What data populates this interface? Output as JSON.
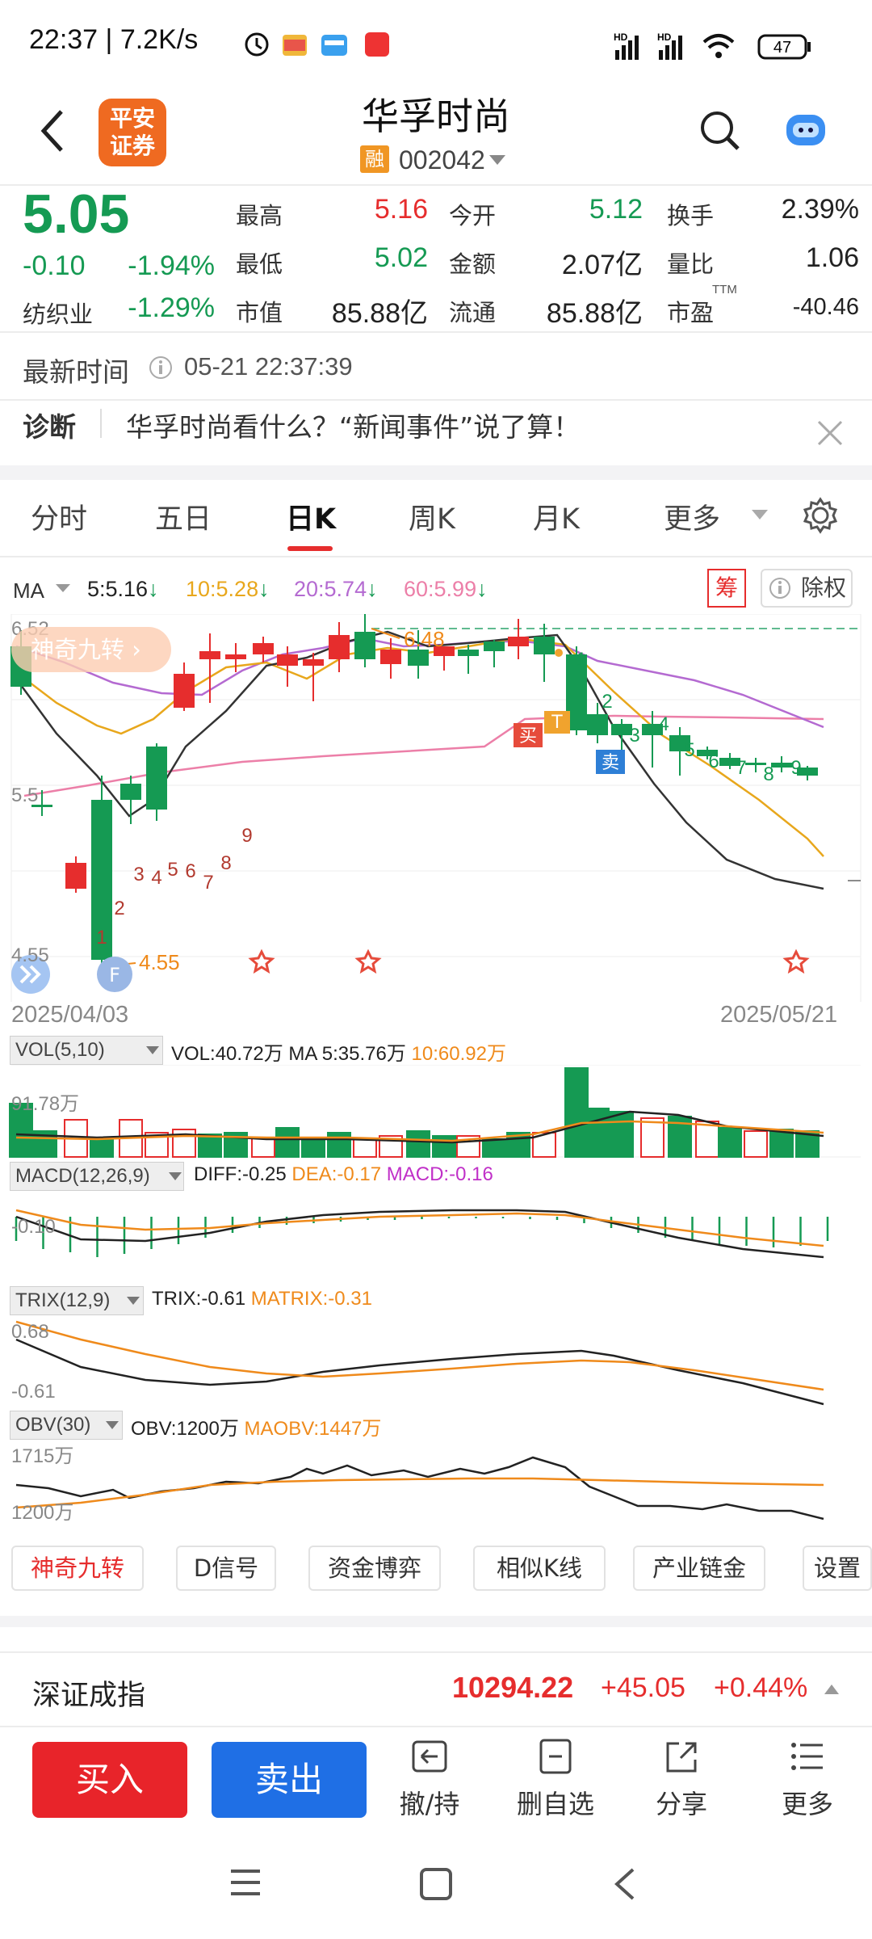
{
  "status": {
    "time": "22:37",
    "speed": "7.2K/s",
    "battery": "47",
    "net1": "HD",
    "net2": "HD"
  },
  "header": {
    "logo_line1": "平安",
    "logo_line2": "证券",
    "title": "华孚时尚",
    "rong": "融",
    "code": "002042"
  },
  "quote": {
    "price": "5.05",
    "change": "-0.10",
    "change_pct": "-1.94%",
    "industry": "纺织业",
    "industry_pct": "-1.29%",
    "high_l": "最高",
    "high": "5.16",
    "open_l": "今开",
    "open": "5.12",
    "turn_l": "换手",
    "turn": "2.39%",
    "low_l": "最低",
    "low": "5.02",
    "amt_l": "金额",
    "amt": "2.07亿",
    "vr_l": "量比",
    "vr": "1.06",
    "mcap_l": "市值",
    "mcap": "85.88亿",
    "float_l": "流通",
    "float": "85.88亿",
    "pe_l": "市盈",
    "pe_sup": "TTM",
    "pe": "-40.46"
  },
  "update": {
    "label": "最新时间",
    "time": "05-21 22:37:39"
  },
  "diag": {
    "label": "诊断",
    "text": "华孚时尚看什么？“新闻事件”说了算！"
  },
  "tabs": [
    "分时",
    "五日",
    "日K",
    "周K",
    "月K",
    "更多"
  ],
  "ma": {
    "label": "MA",
    "ma5": "5:5.16",
    "ma10": "10:5.28",
    "ma20": "20:5.74",
    "ma60": "60:5.99",
    "chou": "筹",
    "chuquan": "除权"
  },
  "kline": {
    "jiuzhuan": "神奇九转",
    "y_high": "6.52",
    "y_mid": "5.5",
    "y_low": "4.55",
    "hi_mark": "6.48",
    "lo_mark": "4.55",
    "date_start": "2025/04/03",
    "date_end": "2025/05/21",
    "buy": "买",
    "sell": "卖",
    "t": "T"
  },
  "vol": {
    "sel": "VOL(5,10)",
    "vol": "VOL:40.72万",
    "ma5": "MA 5:35.76万",
    "ma10": "10:60.92万",
    "y": "91.78万"
  },
  "macd": {
    "sel": "MACD(12,26,9)",
    "diff": "DIFF:-0.25",
    "dea": "DEA:-0.17",
    "macd": "MACD:-0.16",
    "y": "-0.10"
  },
  "trix": {
    "sel": "TRIX(12,9)",
    "trix": "TRIX:-0.61",
    "matrix": "MATRIX:-0.31",
    "y1": "0.68",
    "y2": "-0.61"
  },
  "obv": {
    "sel": "OBV(30)",
    "obv": "OBV:1200万",
    "maobv": "MAOBV:1447万",
    "y1": "1715万",
    "y2": "1200万"
  },
  "chips": [
    "神奇九转",
    "D信号",
    "资金博弈",
    "相似K线",
    "产业链金",
    "设置"
  ],
  "index": {
    "name": "深证成指",
    "value": "10294.22",
    "chg": "+45.05",
    "pct": "+0.44%"
  },
  "bottom": {
    "buy": "买入",
    "sell": "卖出",
    "cancel": "撤/持",
    "del": "删自选",
    "share": "分享",
    "more": "更多"
  },
  "colors": {
    "up": "#e62d2d",
    "down": "#159a53",
    "accent": "#ef8a1b",
    "buy_btn": "#e8242a",
    "sell_btn": "#1f6fe5"
  }
}
